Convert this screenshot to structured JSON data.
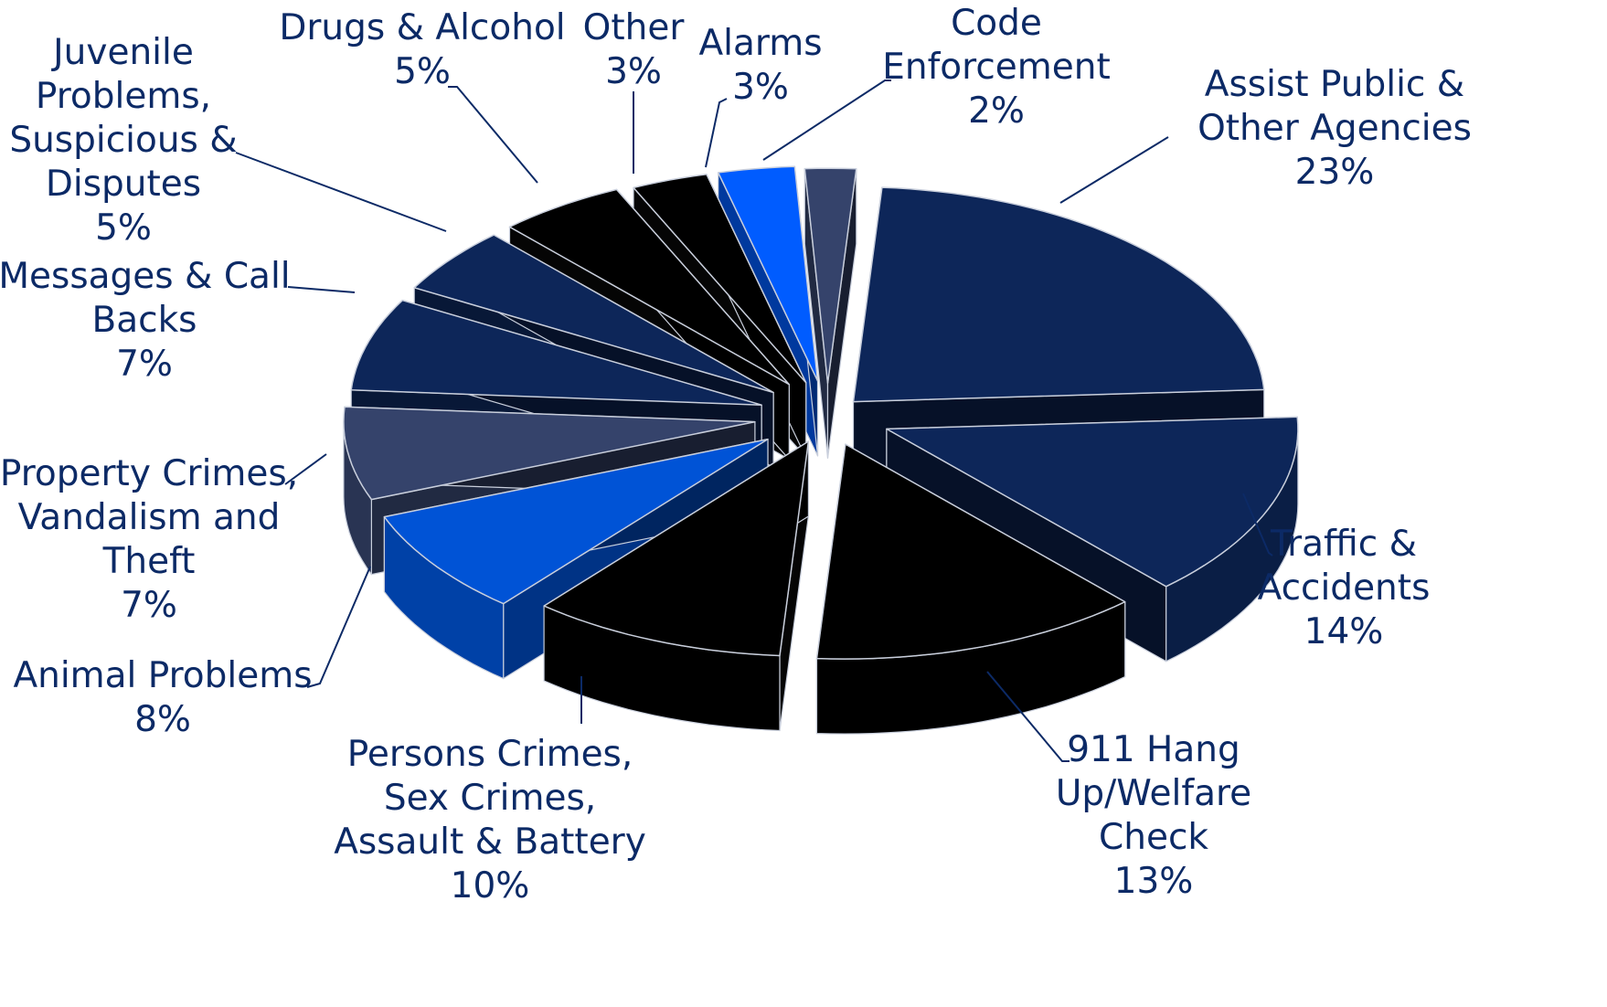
{
  "chart_data": {
    "type": "pie",
    "style": "3d-exploded",
    "categories": [
      "Assist Public & Other Agencies",
      "Traffic & Accidents",
      "911 Hang Up/Welfare Check",
      "Persons Crimes, Sex Crimes, Assault & Battery",
      "Animal Problems",
      "Property Crimes, Vandalism and Theft",
      "Messages & Call Backs",
      "Juvenile Problems, Suspicious & Disputes",
      "Drugs & Alcohol",
      "Other",
      "Alarms",
      "Code Enforcement"
    ],
    "values": [
      23,
      14,
      13,
      10,
      8,
      7,
      7,
      5,
      5,
      3,
      3,
      2
    ],
    "slices": [
      {
        "name": "assist-public",
        "label_lines": [
          "Assist Public &",
          "Other Agencies"
        ],
        "value_text": "23%",
        "color": "#0d2659"
      },
      {
        "name": "traffic-accidents",
        "label_lines": [
          "Traffic &",
          "Accidents"
        ],
        "value_text": "14%",
        "color": "#0d2659"
      },
      {
        "name": "911-hang-up",
        "label_lines": [
          "911 Hang",
          "Up/Welfare",
          "Check"
        ],
        "value_text": "13%",
        "color": "#000000"
      },
      {
        "name": "persons-crimes",
        "label_lines": [
          "Persons Crimes,",
          "Sex Crimes,",
          "Assault & Battery"
        ],
        "value_text": "10%",
        "color": "#000000"
      },
      {
        "name": "animal-problems",
        "label_lines": [
          "Animal Problems"
        ],
        "value_text": "8%",
        "color": "#0053d6"
      },
      {
        "name": "property-crimes",
        "label_lines": [
          "Property Crimes,",
          "Vandalism and",
          "Theft"
        ],
        "value_text": "7%",
        "color": "#35436b"
      },
      {
        "name": "messages-call-backs",
        "label_lines": [
          "Messages & Call",
          "Backs"
        ],
        "value_text": "7%",
        "color": "#0d2659"
      },
      {
        "name": "juvenile-problems",
        "label_lines": [
          "Juvenile",
          "Problems,",
          "Suspicious &",
          "Disputes"
        ],
        "value_text": "5%",
        "color": "#0d2659"
      },
      {
        "name": "drugs-alcohol",
        "label_lines": [
          "Drugs & Alcohol"
        ],
        "value_text": "5%",
        "color": "#000000"
      },
      {
        "name": "other",
        "label_lines": [
          "Other"
        ],
        "value_text": "3%",
        "color": "#000000"
      },
      {
        "name": "alarms",
        "label_lines": [
          "Alarms"
        ],
        "value_text": "3%",
        "color": "#005cff"
      },
      {
        "name": "code-enforcement",
        "label_lines": [
          "Code",
          "Enforcement"
        ],
        "value_text": "2%",
        "color": "#35436b"
      }
    ],
    "label_color": "#0c2a66",
    "legend": "none",
    "grid": false
  }
}
